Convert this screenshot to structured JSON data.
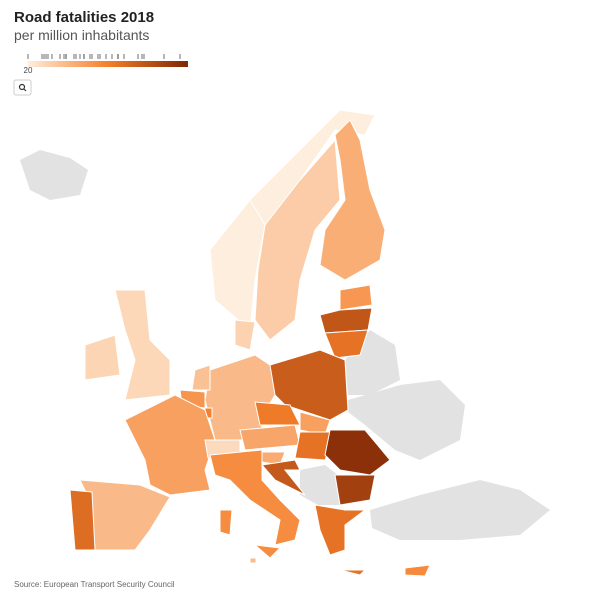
{
  "map_data": {
    "type": "choropleth",
    "title": "Road fatalities 2018",
    "subtitle": "per million inhabitants",
    "source": "Source: European Transport Security Council",
    "legend": {
      "lim": [
        20,
        100
      ],
      "ticks": [
        20
      ],
      "colors": [
        "#feeedd",
        "#f57e2a",
        "#7f2704"
      ]
    },
    "no_data_color": "#e2e2e2",
    "regions": [
      {
        "value": 20
      },
      {
        "value": 32
      },
      {
        "value": 43
      },
      {
        "value": 51
      },
      {
        "value": 78
      },
      {
        "value": 65
      },
      {
        "value": 75
      },
      {
        "value": 39
      },
      {
        "value": 30
      },
      {
        "value": 36
      },
      {
        "value": 52
      },
      {
        "value": 59
      },
      {
        "value": 48
      },
      {
        "value": 39
      },
      {
        "value": 68
      },
      {
        "value": 27
      },
      {
        "value": 46
      },
      {
        "value": 62
      },
      {
        "value": 48
      },
      {
        "value": 65
      },
      {
        "value": 44
      },
      {
        "value": 77
      },
      {
        "value": 55
      },
      {
        "value": 96
      },
      {
        "value": 88
      },
      {
        "value": 65
      },
      {
        "value": 56
      },
      {
        "value": 38
      },
      {
        "value": 29
      },
      {
        "value": 28
      }
    ]
  }
}
